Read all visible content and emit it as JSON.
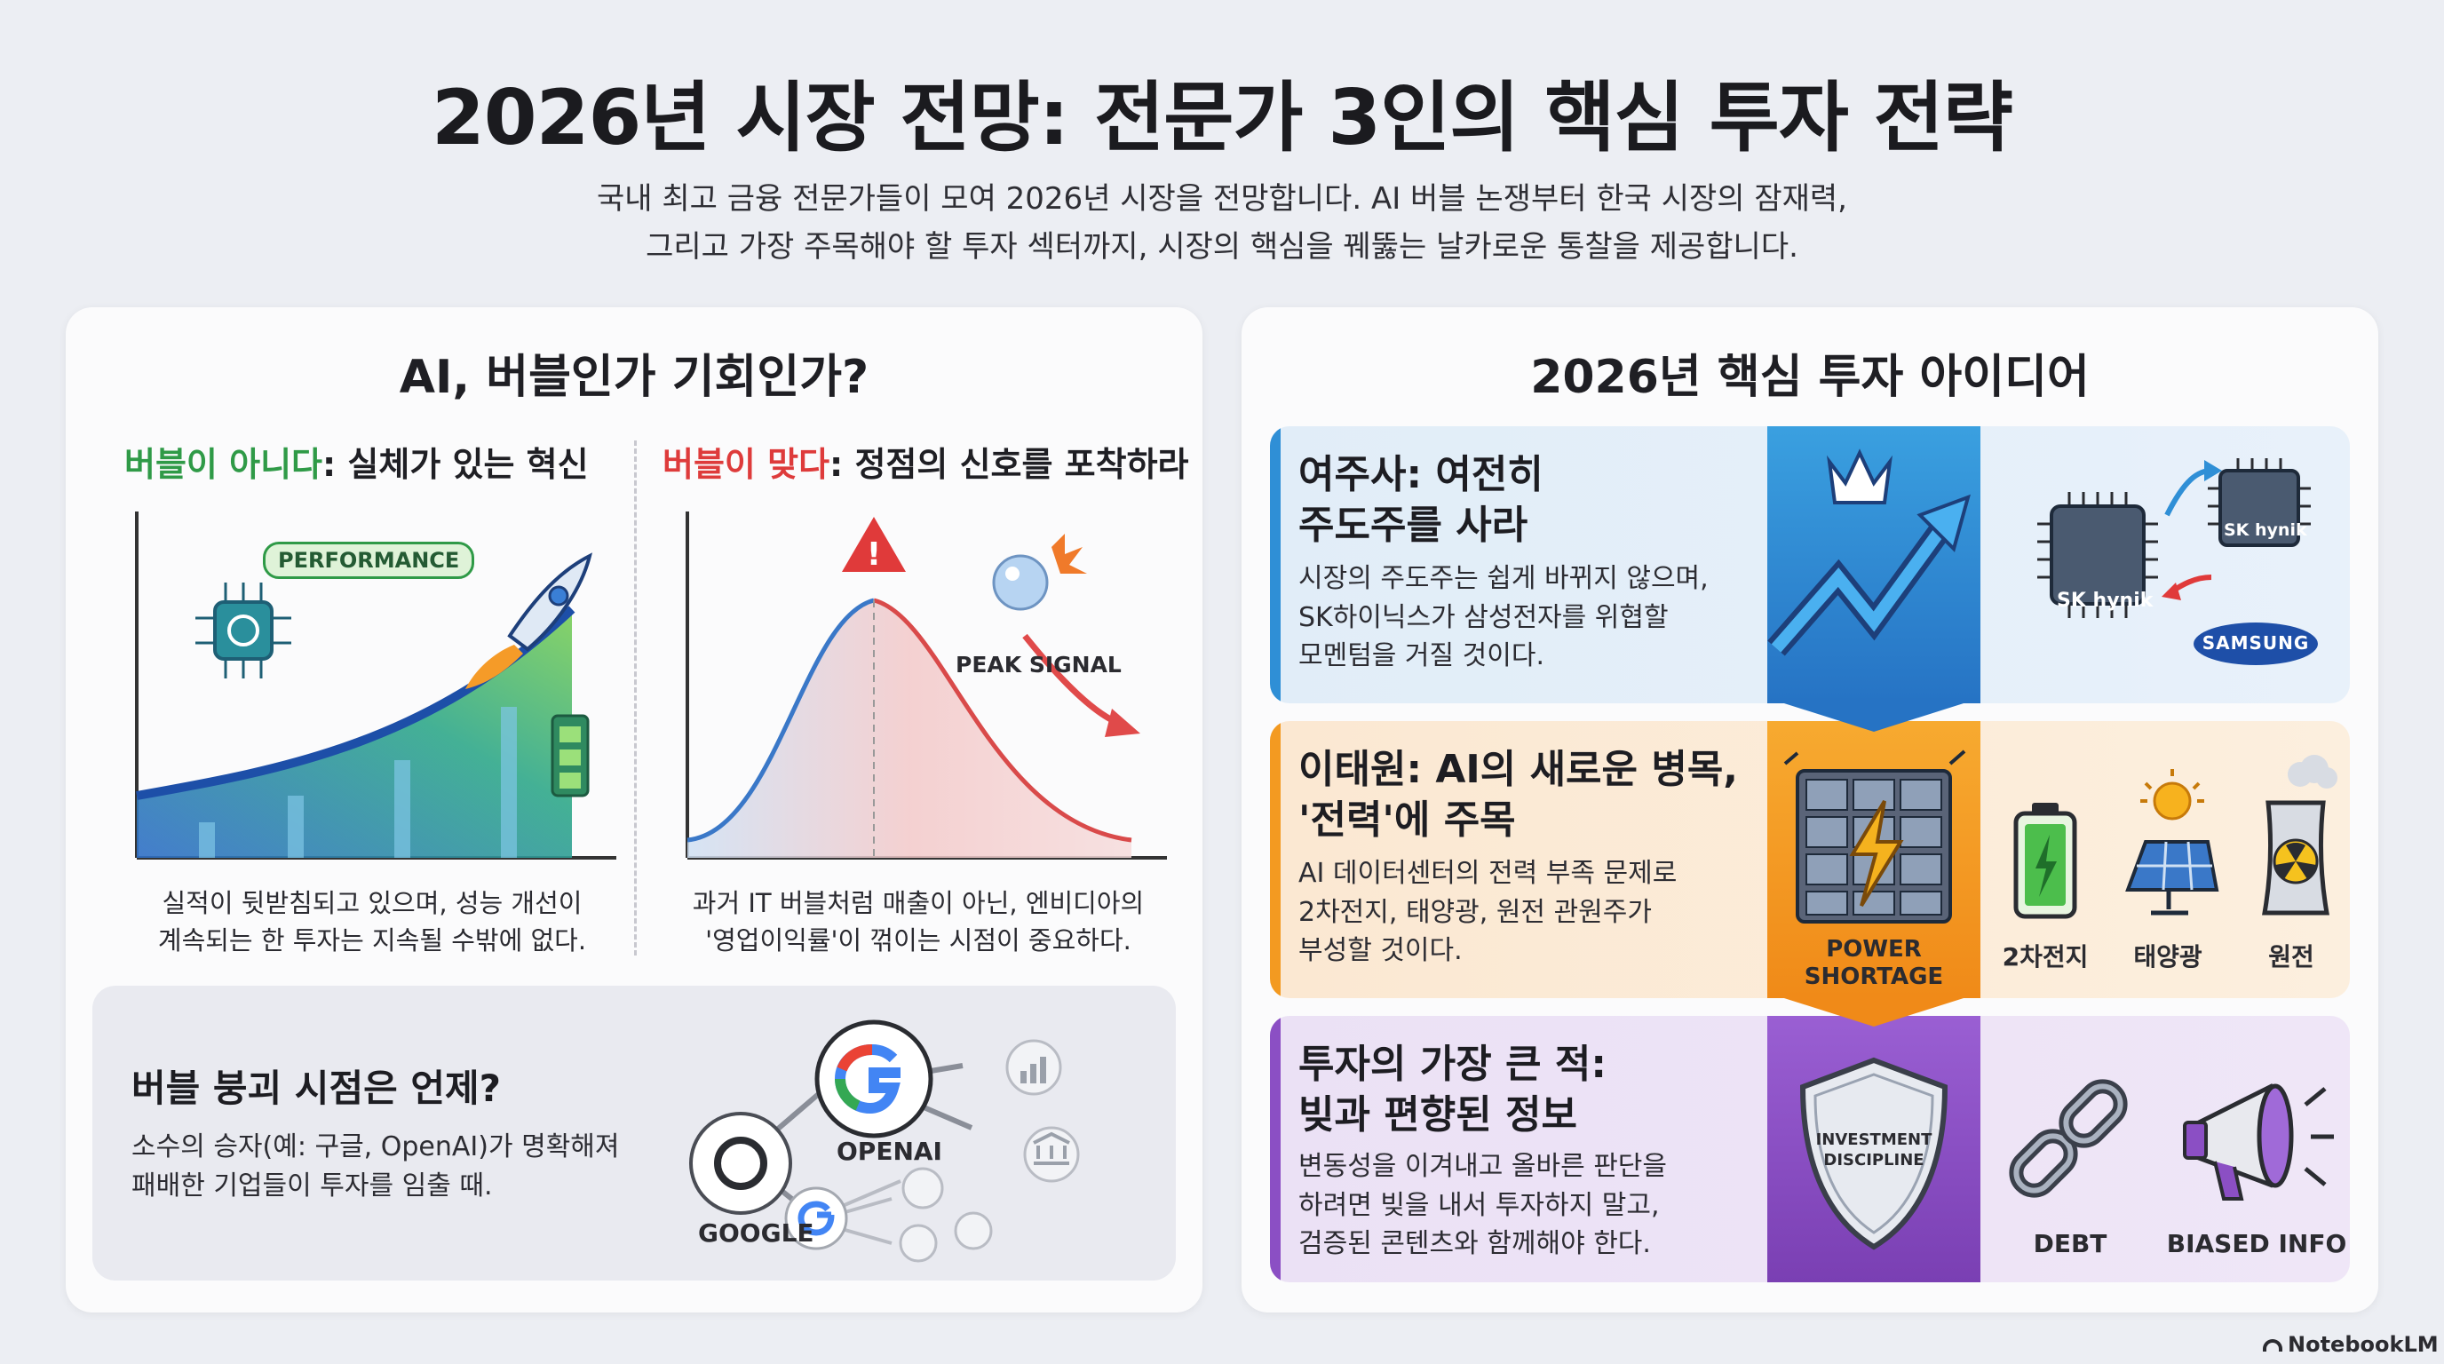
{
  "header": {
    "title": "2026년 시장 전망: 전문가 3인의 핵심 투자 전략",
    "subtitle_line1": "국내 최고 금융 전문가들이 모여 2026년 시장을 전망합니다. AI 버블 논쟁부터 한국 시장의 잠재력,",
    "subtitle_line2": "그리고 가장 주목해야 할 투자 섹터까지, 시장의 핵심을 꿰뚫는 날카로운 통찰을 제공합니다."
  },
  "left_panel": {
    "title": "AI, 버블인가 기회인가?",
    "not_bubble": {
      "head_colored": "버블이 아니다",
      "head_rest": ": 실체가 있는 혁신",
      "badge": "PERFORMANCE",
      "caption_line1": "실적이 뒷받침되고 있으며, 성능 개선이",
      "caption_line2": "계속되는 한 투자는 지속될 수밖에 없다."
    },
    "is_bubble": {
      "head_colored": "버블이 맞다",
      "head_rest": ": 정점의 신호를 포착하라",
      "signal_label": "PEAK SIGNAL",
      "caption_line1": "과거 IT 버블처럼 매출이 아닌, 엔비디아의",
      "caption_line2": "'영업이익률'이 꺾이는 시점이 중요하다."
    },
    "collapse": {
      "title": "버블 붕괴 시점은 언제?",
      "text_line1": "소수의 승자(예: 구글, OpenAI)가 명확해져",
      "text_line2": "패배한 기업들이 투자를 임출 때.",
      "label_openai": "OPENAI",
      "label_google": "GOOGLE"
    }
  },
  "right_panel": {
    "title": "2026년 핵심 투자 아이디어",
    "ideas": [
      {
        "title_line1": "여주사: 여전히",
        "title_line2": "주도주를 사라",
        "text_line1": "시장의 주도주는 쉽게 바뀌지 않으며,",
        "text_line2": "SK하이닉스가 삼성전자를 위협할",
        "text_line3": "모멘텀을 거질 것이다.",
        "chip1": "SK hynik",
        "chip2": "SK hynik",
        "brand": "SAMSUNG"
      },
      {
        "title_line1": "이태원: AI의 새로운 병목,",
        "title_line2": "'전력'에 주목",
        "text_line1": "AI 데이터센터의 전력 부족 문제로",
        "text_line2": "2차전지, 태양광, 원전 관원주가",
        "text_line3": "부성할 것이다.",
        "badge_line1": "POWER",
        "badge_line2": "SHORTAGE",
        "items": [
          "2차전지",
          "태양광",
          "원전"
        ]
      },
      {
        "title_line1": "투자의 가장 큰 적:",
        "title_line2": "빚과 편향된 정보",
        "text_line1": "변동성을 이겨내고 올바른 판단을",
        "text_line2": "하려면 빚을 내서 투자하지 말고,",
        "text_line3": "검증된 콘텐츠와 함께해야 한다.",
        "shield_line1": "INVESTMENT",
        "shield_line2": "DISCIPLINE",
        "items": [
          "DEBT",
          "BIASED INFO"
        ]
      }
    ]
  },
  "footer": {
    "brand": "NotebookLM"
  },
  "colors": {
    "green": "#2f9a47",
    "red": "#de3b3b",
    "blue_band": "#2f8fd6",
    "orange_band": "#f39a21",
    "purple_band": "#8b4fc4"
  }
}
